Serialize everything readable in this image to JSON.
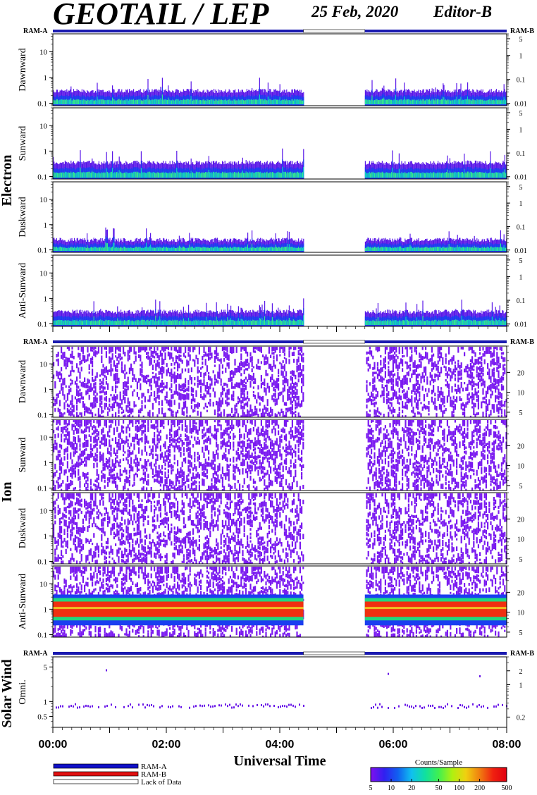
{
  "header": {
    "title": "GEOTAIL / LEP",
    "date": "25 Feb, 2020",
    "editor": "Editor-B"
  },
  "sections": [
    {
      "name": "Electron",
      "ram_left": "RAM-A",
      "ram_right": "RAM-B",
      "left_ticks": [
        "10",
        "1",
        "0.1"
      ],
      "right_ticks": [
        "5",
        "1",
        "0.1",
        "0.01"
      ],
      "panels": [
        "Dawnward",
        "Sunward",
        "Duskward",
        "Anti-Sunward"
      ]
    },
    {
      "name": "Ion",
      "ram_left": "RAM-A",
      "ram_right": "RAM-B",
      "left_ticks": [
        "10",
        "1",
        "0.1"
      ],
      "right_ticks": [
        "20",
        "10",
        "5"
      ],
      "panels": [
        "Dawnward",
        "Sunward",
        "Duskward",
        "Anti-Sunward"
      ]
    },
    {
      "name": "Solar Wind",
      "ram_left": "RAM-A",
      "ram_right": "RAM-B",
      "left_ticks": [
        "5",
        "1",
        "0.5"
      ],
      "right_ticks": [
        "2",
        "1",
        "0.2"
      ],
      "panels": [
        "Omni."
      ]
    }
  ],
  "xaxis": {
    "label": "Universal Time",
    "ticks": [
      "00:00",
      "02:00",
      "04:00",
      "06:00",
      "08:00"
    ]
  },
  "legend": {
    "items": [
      {
        "label": "RAM-A",
        "color": "#1010c8"
      },
      {
        "label": "RAM-B",
        "color": "#e01010"
      },
      {
        "label": "Lack of Data",
        "color": "#ffffff"
      }
    ]
  },
  "colorbar": {
    "title": "Counts/Sample",
    "ticks": [
      "5",
      "10",
      "20",
      "50",
      "100",
      "200",
      "500"
    ]
  },
  "chart_data": {
    "type": "heatmap",
    "time_range": [
      "00:00",
      "08:00"
    ],
    "data_gap": [
      "04:25",
      "05:30"
    ],
    "electron_panels": [
      {
        "name": "Dawnward",
        "band_top": 0.3,
        "band_bottom": 0.1
      },
      {
        "name": "Sunward",
        "band_top": 0.35,
        "band_bottom": 0.1
      },
      {
        "name": "Duskward",
        "band_top": 0.25,
        "band_bottom": 0.1
      },
      {
        "name": "Anti-Sunward",
        "band_top": 0.3,
        "band_bottom": 0.1
      }
    ],
    "ion_antisunward_band": {
      "low": 0.5,
      "high": 2
    },
    "colorbar_range": [
      5,
      500
    ]
  }
}
